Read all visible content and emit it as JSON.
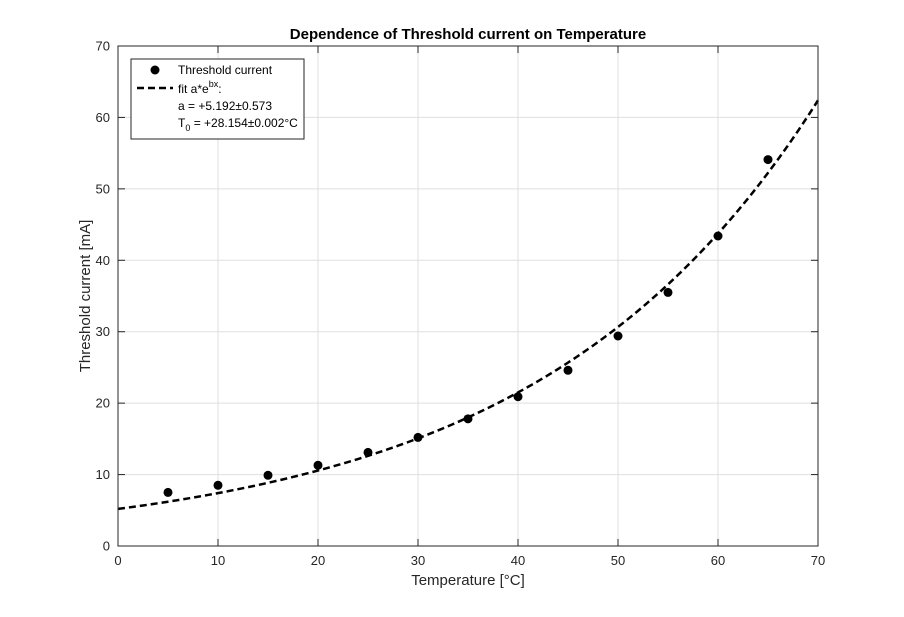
{
  "chart_data": {
    "type": "scatter",
    "title": "Dependence of Threshold current on Temperature",
    "xlabel": "Temperature [°C]",
    "ylabel": "Threshold current [mA]",
    "xlim": [
      0,
      70
    ],
    "ylim": [
      0,
      70
    ],
    "xticks": [
      0,
      10,
      20,
      30,
      40,
      50,
      60,
      70
    ],
    "yticks": [
      0,
      10,
      20,
      30,
      40,
      50,
      60,
      70
    ],
    "grid": true,
    "legend_position": "top-left",
    "series": [
      {
        "name": "Threshold current",
        "style": "markers",
        "color": "#000000",
        "points": [
          {
            "x": 5,
            "y": 7.5
          },
          {
            "x": 10,
            "y": 8.5
          },
          {
            "x": 15,
            "y": 9.9
          },
          {
            "x": 20,
            "y": 11.3
          },
          {
            "x": 25,
            "y": 13.1
          },
          {
            "x": 30,
            "y": 15.2
          },
          {
            "x": 35,
            "y": 17.8
          },
          {
            "x": 40,
            "y": 20.9
          },
          {
            "x": 45,
            "y": 24.6
          },
          {
            "x": 50,
            "y": 29.4
          },
          {
            "x": 55,
            "y": 35.5
          },
          {
            "x": 60,
            "y": 43.4
          },
          {
            "x": 65,
            "y": 54.1
          }
        ]
      },
      {
        "name": "fit a*e^bx",
        "style": "dashed",
        "color": "#000000",
        "fit_a": 5.192,
        "fit_T0": 28.154
      }
    ],
    "legend": {
      "marker_label": "Threshold current",
      "fit_label_prefix": "fit a*e",
      "fit_label_sup": "bx",
      "fit_label_suffix": ":",
      "fit_a_text": "a = +5.192±0.573",
      "fit_T0_prefix": "T",
      "fit_T0_sub": "0",
      "fit_T0_suffix": " = +28.154±0.002°C"
    }
  }
}
